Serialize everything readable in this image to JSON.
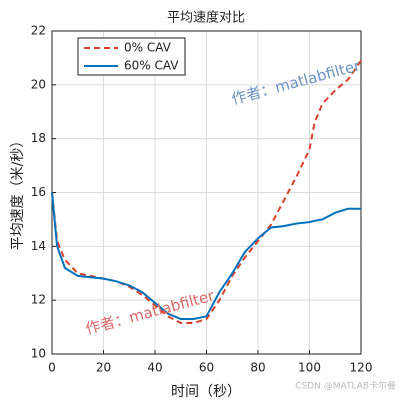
{
  "chart_data": {
    "type": "line",
    "title": "平均速度对比",
    "xlabel": "时间（秒）",
    "ylabel": "平均速度（米/秒）",
    "x": [
      0,
      2,
      5,
      10,
      15,
      20,
      25,
      30,
      35,
      40,
      45,
      50,
      55,
      60,
      65,
      70,
      75,
      80,
      85,
      90,
      95,
      100,
      102,
      105,
      110,
      115,
      120
    ],
    "series": [
      {
        "name": "0% CAV",
        "color": "#d9412b",
        "dashed": true,
        "values": [
          16,
          14.2,
          13.5,
          13.0,
          12.9,
          12.8,
          12.7,
          12.5,
          12.2,
          11.8,
          11.4,
          11.15,
          11.15,
          11.3,
          12.0,
          12.9,
          13.6,
          14.2,
          14.8,
          15.7,
          16.6,
          17.6,
          18.6,
          19.3,
          19.8,
          20.2,
          20.9
        ]
      },
      {
        "name": "60% CAV",
        "color": "#0072bd",
        "dashed": false,
        "values": [
          16,
          14.0,
          13.2,
          12.9,
          12.85,
          12.8,
          12.7,
          12.55,
          12.3,
          11.9,
          11.5,
          11.3,
          11.3,
          11.4,
          12.3,
          13.0,
          13.8,
          14.3,
          14.7,
          14.75,
          14.85,
          14.9,
          14.95,
          15.0,
          15.25,
          15.4,
          15.4
        ]
      }
    ],
    "xlim": [
      0,
      120
    ],
    "xticks": [
      0,
      20,
      40,
      60,
      80,
      100,
      120
    ],
    "ylim": [
      10,
      22
    ],
    "yticks": [
      10,
      12,
      14,
      16,
      18,
      20,
      22
    ],
    "grid": true,
    "legend": "upper left",
    "annotations": [
      "作者：matlabfilter",
      "作者：matlabfilter",
      "CSDN @MATLAB卡尔曼"
    ]
  }
}
